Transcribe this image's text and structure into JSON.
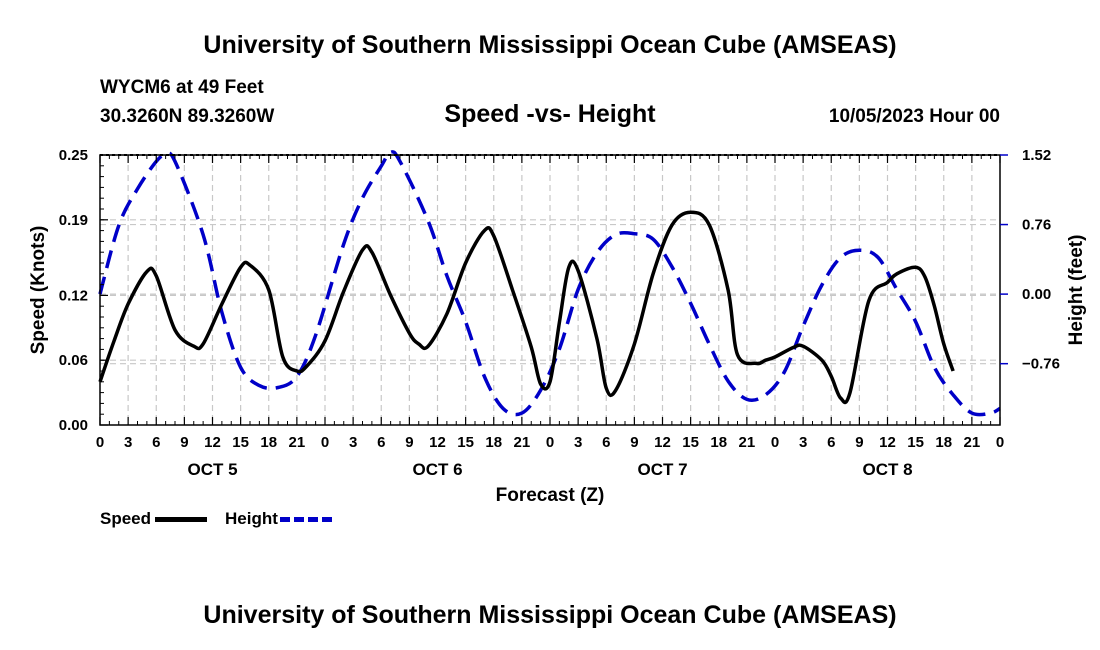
{
  "header": {
    "title": "University of Southern Mississippi Ocean Cube (AMSEAS)",
    "station": "WYCM6 at 49 Feet",
    "coords": "30.3260N  89.3260W",
    "datetime": "10/05/2023 Hour 00",
    "footer_title": "University of Southern Mississippi Ocean Cube (AMSEAS)"
  },
  "chart_data": {
    "type": "line",
    "title": "Speed -vs- Height",
    "xlabel": "Forecast (Z)",
    "ylabel": "Speed (Knots)",
    "y2label": "Height (feet)",
    "xlim": [
      0,
      96
    ],
    "ylim": [
      0,
      0.25
    ],
    "y2lim": [
      -1.43,
      1.52
    ],
    "yticks": [
      0.0,
      0.06,
      0.12,
      0.19,
      0.25
    ],
    "ytick_labels": [
      "0.00",
      "0.06",
      "0.12",
      "0.19",
      "0.25"
    ],
    "y2ticks": [
      -0.76,
      0.0,
      0.76,
      1.52
    ],
    "y2tick_labels": [
      "−0.76",
      "0.00",
      "0.76",
      "1.52"
    ],
    "x": [
      0,
      3,
      6,
      9,
      12,
      15,
      18,
      21,
      24,
      27,
      30,
      33,
      36,
      39,
      42,
      45,
      48,
      51,
      54,
      57,
      60,
      63,
      66,
      69,
      72,
      75,
      78,
      81,
      84,
      87,
      90,
      93,
      96
    ],
    "xtick_labels": [
      "0",
      "3",
      "6",
      "9",
      "12",
      "15",
      "18",
      "21",
      "0",
      "3",
      "6",
      "9",
      "12",
      "15",
      "18",
      "21",
      "0",
      "3",
      "6",
      "9",
      "12",
      "15",
      "18",
      "21",
      "0",
      "3",
      "6",
      "9",
      "12",
      "15",
      "18",
      "21",
      "0"
    ],
    "day_labels": [
      {
        "label": "OCT 5",
        "x": 12
      },
      {
        "label": "OCT 6",
        "x": 36
      },
      {
        "label": "OCT 7",
        "x": 60
      },
      {
        "label": "OCT 8",
        "x": 84
      }
    ],
    "grid": true,
    "legend_position": "bottom-left",
    "series": [
      {
        "name": "Speed",
        "axis": "left",
        "color": "#000000",
        "dash": "solid",
        "points": [
          [
            0,
            0.04
          ],
          [
            1.5,
            0.078
          ],
          [
            3,
            0.112
          ],
          [
            5,
            0.142
          ],
          [
            6,
            0.138
          ],
          [
            8,
            0.088
          ],
          [
            10,
            0.073
          ],
          [
            11,
            0.075
          ],
          [
            13,
            0.112
          ],
          [
            15,
            0.146
          ],
          [
            16,
            0.148
          ],
          [
            18,
            0.125
          ],
          [
            19.5,
            0.063
          ],
          [
            21,
            0.05
          ],
          [
            22,
            0.054
          ],
          [
            24,
            0.078
          ],
          [
            26,
            0.124
          ],
          [
            28,
            0.162
          ],
          [
            29,
            0.16
          ],
          [
            31,
            0.12
          ],
          [
            33,
            0.085
          ],
          [
            34,
            0.075
          ],
          [
            35,
            0.073
          ],
          [
            37,
            0.103
          ],
          [
            39,
            0.15
          ],
          [
            41,
            0.18
          ],
          [
            42,
            0.175
          ],
          [
            44,
            0.125
          ],
          [
            46,
            0.072
          ],
          [
            47,
            0.038
          ],
          [
            48,
            0.04
          ],
          [
            49,
            0.095
          ],
          [
            50,
            0.146
          ],
          [
            51,
            0.143
          ],
          [
            53,
            0.08
          ],
          [
            54,
            0.034
          ],
          [
            55,
            0.032
          ],
          [
            57,
            0.075
          ],
          [
            59,
            0.14
          ],
          [
            61,
            0.185
          ],
          [
            63,
            0.197
          ],
          [
            65,
            0.185
          ],
          [
            67,
            0.125
          ],
          [
            68,
            0.065
          ],
          [
            70,
            0.057
          ],
          [
            71,
            0.06
          ],
          [
            72,
            0.063
          ],
          [
            74,
            0.072
          ],
          [
            75,
            0.073
          ],
          [
            77,
            0.06
          ],
          [
            78,
            0.045
          ],
          [
            79,
            0.025
          ],
          [
            80,
            0.03
          ],
          [
            82,
            0.115
          ],
          [
            84,
            0.132
          ],
          [
            85,
            0.14
          ],
          [
            87,
            0.146
          ],
          [
            88,
            0.137
          ],
          [
            89,
            0.11
          ],
          [
            90,
            0.075
          ],
          [
            91,
            0.05
          ]
        ]
      },
      {
        "name": "Height",
        "axis": "right",
        "color": "#0000c8",
        "dash": "dashed",
        "points": [
          [
            0,
            0.0
          ],
          [
            2,
            0.75
          ],
          [
            4,
            1.15
          ],
          [
            6,
            1.45
          ],
          [
            7,
            1.52
          ],
          [
            8,
            1.45
          ],
          [
            11,
            0.65
          ],
          [
            13,
            -0.2
          ],
          [
            15,
            -0.8
          ],
          [
            17,
            -1.0
          ],
          [
            19,
            -1.02
          ],
          [
            21,
            -0.9
          ],
          [
            23,
            -0.45
          ],
          [
            26,
            0.55
          ],
          [
            28,
            1.05
          ],
          [
            30,
            1.4
          ],
          [
            31,
            1.55
          ],
          [
            32,
            1.45
          ],
          [
            35,
            0.8
          ],
          [
            37,
            0.2
          ],
          [
            39,
            -0.3
          ],
          [
            41,
            -0.9
          ],
          [
            43,
            -1.25
          ],
          [
            45,
            -1.3
          ],
          [
            47,
            -1.05
          ],
          [
            49,
            -0.6
          ],
          [
            51,
            0.05
          ],
          [
            53,
            0.45
          ],
          [
            55,
            0.65
          ],
          [
            57,
            0.66
          ],
          [
            59,
            0.6
          ],
          [
            61,
            0.3
          ],
          [
            63,
            -0.1
          ],
          [
            65,
            -0.55
          ],
          [
            67,
            -0.95
          ],
          [
            69,
            -1.15
          ],
          [
            71,
            -1.1
          ],
          [
            73,
            -0.85
          ],
          [
            75,
            -0.35
          ],
          [
            77,
            0.1
          ],
          [
            79,
            0.4
          ],
          [
            81,
            0.48
          ],
          [
            83,
            0.4
          ],
          [
            85,
            0.05
          ],
          [
            87,
            -0.3
          ],
          [
            89,
            -0.8
          ],
          [
            91,
            -1.1
          ],
          [
            93,
            -1.3
          ],
          [
            95,
            -1.3
          ],
          [
            96,
            -1.25
          ]
        ]
      }
    ]
  }
}
